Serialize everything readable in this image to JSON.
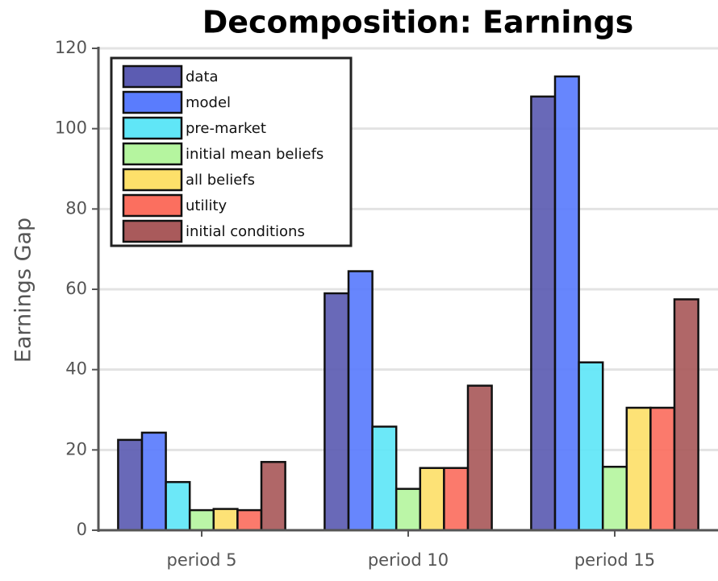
{
  "chart_data": {
    "type": "bar",
    "title": "Decomposition: Earnings",
    "y_label": "Earnings Gap",
    "categories": [
      "period 5",
      "period 10",
      "period 15"
    ],
    "series": [
      {
        "name": "data",
        "color": "#5c5cb2",
        "values": [
          22.5,
          59,
          108
        ]
      },
      {
        "name": "model",
        "color": "#5a7cfd",
        "values": [
          24.3,
          64.5,
          113
        ]
      },
      {
        "name": "pre-market",
        "color": "#60e6f7",
        "values": [
          12,
          25.8,
          41.8
        ]
      },
      {
        "name": "initial mean beliefs",
        "color": "#b5f59f",
        "values": [
          5,
          10.3,
          15.8
        ]
      },
      {
        "name": "all beliefs",
        "color": "#fde06a",
        "values": [
          5.3,
          15.5,
          30.5
        ]
      },
      {
        "name": "utility",
        "color": "#fb6f5f",
        "values": [
          5,
          15.5,
          30.5
        ]
      },
      {
        "name": "initial conditions",
        "color": "#a95a5b",
        "values": [
          17,
          36,
          57.5
        ]
      }
    ],
    "ylim": [
      0,
      120
    ],
    "yticks": [
      0,
      20,
      40,
      60,
      80,
      100,
      120
    ],
    "grid": true,
    "legend": "upper left"
  }
}
